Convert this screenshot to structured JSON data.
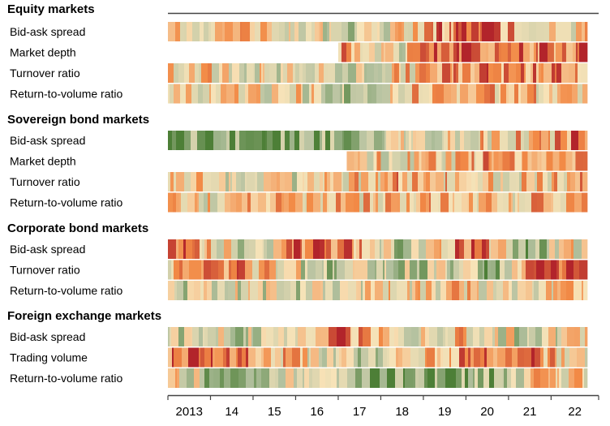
{
  "chart_data": {
    "type": "heatmap",
    "title": "",
    "xlabel": "",
    "ylabel": "",
    "x_range": [
      2013.0,
      2022.85
    ],
    "x_ticks": [
      2013,
      2014,
      2015,
      2016,
      2017,
      2018,
      2019,
      2020,
      2021,
      2022
    ],
    "x_tick_labels": [
      "2013",
      "14",
      "15",
      "16",
      "17",
      "18",
      "19",
      "20",
      "21",
      "22"
    ],
    "color_scale": {
      "low": "#4d7f37",
      "mid_low": "#b4c1a0",
      "mid": "#f7e3b8",
      "mid_high": "#f28a46",
      "high": "#b2242b"
    },
    "groups": [
      {
        "title": "Equity markets",
        "rows": [
          {
            "label": "Bid-ask spread",
            "start": 2013.0,
            "profile": [
              [
                0,
                0.55
              ],
              [
                0.3,
                0.55
              ],
              [
                0.44,
                0.35
              ],
              [
                0.56,
                0.5
              ],
              [
                0.72,
                0.95
              ],
              [
                0.86,
                0.6
              ],
              [
                1,
                0.55
              ]
            ]
          },
          {
            "label": "Market depth",
            "start": 2017.0,
            "profile": [
              [
                0,
                0.3
              ],
              [
                0.25,
                0.45
              ],
              [
                0.42,
                0.65
              ],
              [
                0.55,
                0.45
              ],
              [
                0.66,
                0.9
              ],
              [
                0.85,
                0.75
              ],
              [
                1,
                0.85
              ]
            ]
          },
          {
            "label": "Turnover ratio",
            "start": 2013.0,
            "profile": [
              [
                0,
                0.55
              ],
              [
                0.2,
                0.5
              ],
              [
                0.45,
                0.4
              ],
              [
                0.56,
                0.55
              ],
              [
                0.75,
                0.8
              ],
              [
                0.9,
                0.7
              ],
              [
                1,
                0.75
              ]
            ]
          },
          {
            "label": "Return-to-volume ratio",
            "start": 2013.0,
            "profile": [
              [
                0,
                0.5
              ],
              [
                0.3,
                0.5
              ],
              [
                0.46,
                0.25
              ],
              [
                0.56,
                0.55
              ],
              [
                0.72,
                0.65
              ],
              [
                0.9,
                0.6
              ],
              [
                1,
                0.6
              ]
            ]
          }
        ]
      },
      {
        "title": "Sovereign bond markets",
        "rows": [
          {
            "label": "Bid-ask spread",
            "start": 2013.0,
            "profile": [
              [
                0,
                0.1
              ],
              [
                0.3,
                0.15
              ],
              [
                0.42,
                0.2
              ],
              [
                0.55,
                0.4
              ],
              [
                0.72,
                0.55
              ],
              [
                0.9,
                0.6
              ],
              [
                1,
                0.9
              ]
            ]
          },
          {
            "label": "Market depth",
            "start": 2017.2,
            "profile": [
              [
                0,
                0.55
              ],
              [
                0.3,
                0.55
              ],
              [
                0.55,
                0.5
              ],
              [
                0.75,
                0.65
              ],
              [
                0.9,
                0.7
              ],
              [
                1,
                0.85
              ]
            ]
          },
          {
            "label": "Turnover ratio",
            "start": 2013.0,
            "profile": [
              [
                0,
                0.55
              ],
              [
                0.2,
                0.45
              ],
              [
                0.35,
                0.45
              ],
              [
                0.55,
                0.65
              ],
              [
                0.75,
                0.55
              ],
              [
                0.9,
                0.5
              ],
              [
                1,
                0.8
              ]
            ]
          },
          {
            "label": "Return-to-volume ratio",
            "start": 2013.0,
            "profile": [
              [
                0,
                0.5
              ],
              [
                0.25,
                0.55
              ],
              [
                0.45,
                0.55
              ],
              [
                0.6,
                0.6
              ],
              [
                0.8,
                0.55
              ],
              [
                1,
                0.7
              ]
            ]
          }
        ]
      },
      {
        "title": "Corporate bond markets",
        "rows": [
          {
            "label": "Bid-ask spread",
            "start": 2013.0,
            "profile": [
              [
                0,
                0.9
              ],
              [
                0.1,
                0.6
              ],
              [
                0.2,
                0.3
              ],
              [
                0.3,
                0.75
              ],
              [
                0.45,
                0.75
              ],
              [
                0.56,
                0.2
              ],
              [
                0.72,
                0.9
              ],
              [
                0.85,
                0.2
              ],
              [
                1,
                0.6
              ]
            ]
          },
          {
            "label": "Turnover ratio",
            "start": 2013.0,
            "profile": [
              [
                0,
                0.55
              ],
              [
                0.15,
                0.75
              ],
              [
                0.35,
                0.35
              ],
              [
                0.5,
                0.3
              ],
              [
                0.7,
                0.4
              ],
              [
                0.78,
                0.1
              ],
              [
                0.88,
                0.85
              ],
              [
                1,
                0.95
              ]
            ]
          },
          {
            "label": "Return-to-volume ratio",
            "start": 2013.0,
            "profile": [
              [
                0,
                0.4
              ],
              [
                0.3,
                0.4
              ],
              [
                0.5,
                0.5
              ],
              [
                0.7,
                0.55
              ],
              [
                0.85,
                0.5
              ],
              [
                1,
                0.55
              ]
            ]
          }
        ]
      },
      {
        "title": "Foreign exchange markets",
        "rows": [
          {
            "label": "Bid-ask spread",
            "start": 2013.0,
            "profile": [
              [
                0,
                0.35
              ],
              [
                0.2,
                0.4
              ],
              [
                0.4,
                0.85
              ],
              [
                0.55,
                0.45
              ],
              [
                0.7,
                0.6
              ],
              [
                0.85,
                0.35
              ],
              [
                1,
                0.55
              ]
            ]
          },
          {
            "label": "Trading volume",
            "start": 2013.0,
            "profile": [
              [
                0,
                0.85
              ],
              [
                0.15,
                0.75
              ],
              [
                0.3,
                0.55
              ],
              [
                0.48,
                0.3
              ],
              [
                0.62,
                0.65
              ],
              [
                0.8,
                0.9
              ],
              [
                1,
                0.45
              ]
            ]
          },
          {
            "label": "Return-to-volume ratio",
            "start": 2013.0,
            "profile": [
              [
                0,
                0.5
              ],
              [
                0.14,
                0.2
              ],
              [
                0.3,
                0.5
              ],
              [
                0.5,
                0.1
              ],
              [
                0.72,
                0.15
              ],
              [
                0.85,
                0.5
              ],
              [
                1,
                0.55
              ]
            ]
          }
        ]
      }
    ]
  }
}
